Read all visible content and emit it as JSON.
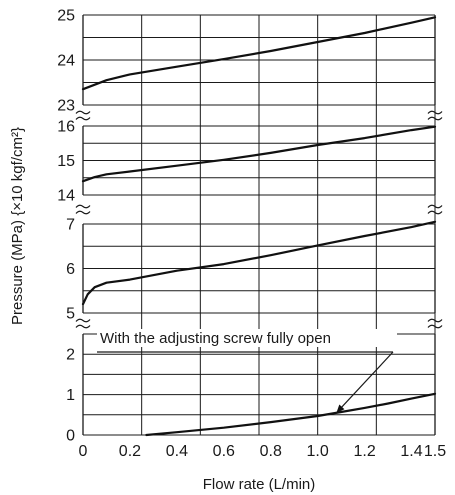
{
  "chart_data": {
    "type": "line",
    "xlabel": "Flow rate (L/min)",
    "ylabel": "Pressure (MPa) {×10 kgf/cm²}",
    "xlim": [
      0,
      1.5
    ],
    "x_ticks": [
      "0",
      "0.2",
      "0.4",
      "0.6",
      "0.8",
      "1.0",
      "1.2",
      "1.4",
      "1.5"
    ],
    "x_tick_values": [
      0,
      0.2,
      0.4,
      0.6,
      0.8,
      1.0,
      1.2,
      1.4,
      1.5
    ],
    "x_gridlines": [
      0.25,
      0.5,
      0.75,
      1.0,
      1.25,
      1.5
    ],
    "grid": true,
    "broken_axis": true,
    "panels": [
      {
        "ylim": [
          23,
          25
        ],
        "y_ticks": [
          "23",
          "24",
          "25"
        ],
        "y_tick_values": [
          23,
          24,
          25
        ],
        "y_gridlines": [
          23,
          23.5,
          24,
          24.5,
          25
        ],
        "series": [
          {
            "x": [
              0,
              0.1,
              0.2,
              0.4,
              0.6,
              0.8,
              1.0,
              1.2,
              1.4,
              1.5
            ],
            "y": [
              23.35,
              23.55,
              23.68,
              23.85,
              24.02,
              24.2,
              24.4,
              24.6,
              24.83,
              24.95
            ]
          }
        ]
      },
      {
        "ylim": [
          14,
          16
        ],
        "y_ticks": [
          "14",
          "15",
          "16"
        ],
        "y_tick_values": [
          14,
          15,
          16
        ],
        "y_gridlines": [
          14,
          14.5,
          15,
          15.5,
          16
        ],
        "series": [
          {
            "x": [
              0,
              0.05,
              0.1,
              0.2,
              0.4,
              0.6,
              0.8,
              1.0,
              1.2,
              1.4,
              1.5
            ],
            "y": [
              14.4,
              14.52,
              14.6,
              14.68,
              14.85,
              15.02,
              15.22,
              15.45,
              15.65,
              15.88,
              15.98
            ]
          }
        ]
      },
      {
        "ylim": [
          5,
          7
        ],
        "y_ticks": [
          "5",
          "6",
          "7"
        ],
        "y_tick_values": [
          5,
          6,
          7
        ],
        "y_gridlines": [
          5,
          5.5,
          6,
          6.5,
          7
        ],
        "series": [
          {
            "x": [
              0,
              0.02,
              0.05,
              0.1,
              0.2,
              0.4,
              0.6,
              0.8,
              1.0,
              1.2,
              1.4,
              1.5
            ],
            "y": [
              5.2,
              5.42,
              5.58,
              5.68,
              5.75,
              5.95,
              6.1,
              6.3,
              6.52,
              6.73,
              6.93,
              7.05
            ]
          }
        ]
      },
      {
        "ylim": [
          0,
          2.5
        ],
        "y_ticks": [
          "0",
          "1",
          "2"
        ],
        "y_tick_values": [
          0,
          1,
          2
        ],
        "y_gridlines": [
          0,
          0.5,
          1,
          1.5,
          2,
          2.5
        ],
        "series": [
          {
            "x": [
              0.27,
              0.4,
              0.6,
              0.8,
              1.0,
              1.1,
              1.2,
              1.3,
              1.4,
              1.5
            ],
            "y": [
              0,
              0.07,
              0.18,
              0.32,
              0.47,
              0.57,
              0.67,
              0.78,
              0.9,
              1.02
            ]
          }
        ]
      }
    ],
    "annotations": [
      {
        "text": "With the adjusting screw fully open",
        "points_to": {
          "x": 1.08,
          "y": 0.55
        }
      }
    ]
  }
}
